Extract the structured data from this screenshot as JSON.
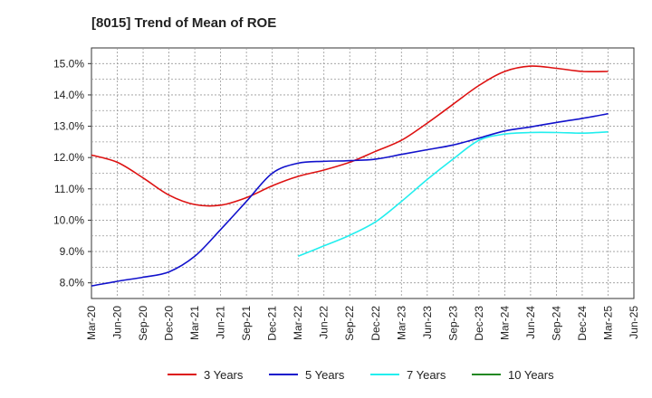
{
  "chart_data": {
    "type": "line",
    "title": "[8015]  Trend of Mean of ROE",
    "xlabel": "",
    "ylabel": "",
    "categories": [
      "Mar-20",
      "Jun-20",
      "Sep-20",
      "Dec-20",
      "Mar-21",
      "Jun-21",
      "Sep-21",
      "Dec-21",
      "Mar-22",
      "Jun-22",
      "Sep-22",
      "Dec-22",
      "Mar-23",
      "Jun-23",
      "Sep-23",
      "Dec-23",
      "Mar-24",
      "Jun-24",
      "Sep-24",
      "Dec-24",
      "Mar-25",
      "Jun-25"
    ],
    "y_ticks": [
      "8.0%",
      "9.0%",
      "10.0%",
      "11.0%",
      "12.0%",
      "13.0%",
      "14.0%",
      "15.0%"
    ],
    "ylim": [
      7.5,
      15.5
    ],
    "grid": true,
    "legend_position": "bottom",
    "series": [
      {
        "name": "3 Years",
        "color": "#dd1111",
        "values": [
          12.08,
          11.85,
          11.35,
          10.8,
          10.5,
          10.48,
          10.72,
          11.1,
          11.4,
          11.6,
          11.85,
          12.2,
          12.55,
          13.1,
          13.7,
          14.3,
          14.75,
          14.92,
          14.85,
          14.75,
          14.75,
          null
        ]
      },
      {
        "name": "5 Years",
        "color": "#1111cc",
        "values": [
          7.9,
          8.05,
          8.18,
          8.35,
          8.85,
          9.7,
          10.6,
          11.5,
          11.82,
          11.88,
          11.9,
          11.95,
          12.1,
          12.25,
          12.4,
          12.62,
          12.85,
          12.98,
          13.12,
          13.25,
          13.4,
          null
        ]
      },
      {
        "name": "7 Years",
        "color": "#22eeee",
        "values": [
          null,
          null,
          null,
          null,
          null,
          null,
          null,
          null,
          8.85,
          9.18,
          9.52,
          9.95,
          10.6,
          11.3,
          11.95,
          12.55,
          12.75,
          12.8,
          12.8,
          12.78,
          12.82,
          null
        ]
      },
      {
        "name": "10 Years",
        "color": "#228822",
        "values": [
          null,
          null,
          null,
          null,
          null,
          null,
          null,
          null,
          null,
          null,
          null,
          null,
          null,
          null,
          null,
          null,
          null,
          null,
          null,
          null,
          null,
          null
        ]
      }
    ]
  }
}
